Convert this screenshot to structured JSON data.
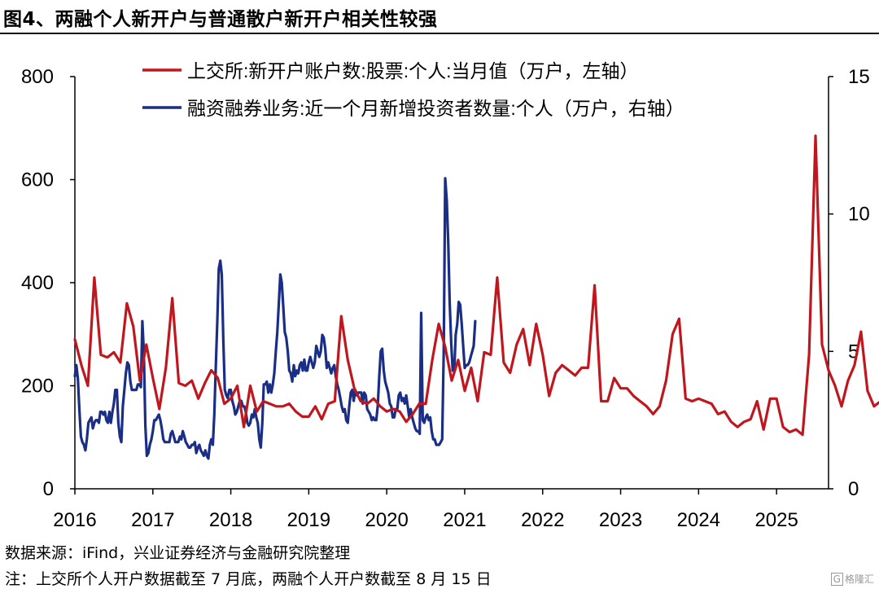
{
  "figure_title": "图4、两融个人新开户与普通散户新开户相关性较强",
  "source_text": "数据来源：iFind，兴业证券经济与金融研究院整理",
  "note_text": "注：上交所个人开户数据截至 7 月底，两融个人开户数截至 8 月 15 日",
  "watermark_text": "格隆汇",
  "colors": {
    "red": "#c0171e",
    "blue": "#1a2e86"
  },
  "chart_data": {
    "type": "line",
    "x_start": "2016-01",
    "x_end": "2025-08",
    "xticks": [
      "2016",
      "2017",
      "2018",
      "2019",
      "2020",
      "2021",
      "2022",
      "2023",
      "2024",
      "2025"
    ],
    "y_left": {
      "range": [
        0,
        800
      ],
      "ticks": [
        "0",
        "200",
        "400",
        "600",
        "800"
      ]
    },
    "y_right": {
      "range": [
        0,
        15
      ],
      "ticks": [
        "0",
        "5",
        "10",
        "15"
      ]
    },
    "legend_position": "top",
    "series": [
      {
        "name": "上交所:新开户账户数:股票:个人:当月值（万户，左轴）",
        "axis": "left",
        "color": "red",
        "frequency": "monthly",
        "start": "2016-01",
        "values": [
          290,
          240,
          200,
          410,
          260,
          255,
          265,
          245,
          360,
          315,
          210,
          280,
          215,
          155,
          235,
          370,
          205,
          200,
          210,
          175,
          205,
          230,
          215,
          165,
          175,
          200,
          120,
          200,
          150,
          170,
          165,
          160,
          160,
          165,
          150,
          140,
          140,
          160,
          135,
          165,
          170,
          335,
          250,
          195,
          170,
          165,
          175,
          160,
          150,
          155,
          150,
          130,
          145,
          165,
          165,
          250,
          320,
          275,
          210,
          250,
          190,
          235,
          170,
          265,
          260,
          410,
          245,
          225,
          280,
          310,
          240,
          320,
          260,
          180,
          225,
          240,
          230,
          220,
          235,
          235,
          395,
          170,
          170,
          215,
          195,
          195,
          180,
          170,
          160,
          145,
          160,
          210,
          300,
          330,
          175,
          170,
          175,
          170,
          165,
          145,
          150,
          130,
          120,
          130,
          135,
          170,
          115,
          175,
          175,
          120,
          110,
          115,
          105,
          260,
          685,
          280,
          230,
          200,
          160,
          210,
          240,
          305,
          190,
          160,
          170,
          200
        ]
      },
      {
        "name": "融资融券业务:近一个月新增投资者数量:个人（万户，右轴）",
        "axis": "right",
        "color": "blue",
        "frequency": "weekly",
        "start": "2016-01",
        "values": [
          4.1,
          4.5,
          4.0,
          2.9,
          1.9,
          1.7,
          1.6,
          1.4,
          1.8,
          2.4,
          2.5,
          2.6,
          2.2,
          2.4,
          2.5,
          2.5,
          2.4,
          2.8,
          2.8,
          2.7,
          2.8,
          2.5,
          2.4,
          2.8,
          2.4,
          2.8,
          3.1,
          3.6,
          3.6,
          2.4,
          1.9,
          1.7,
          3.0,
          3.6,
          4.2,
          4.6,
          4.5,
          3.9,
          3.6,
          3.6,
          3.6,
          3.6,
          3.8,
          3.8,
          3.7,
          6.1,
          5.0,
          2.3,
          1.2,
          1.3,
          1.6,
          1.8,
          2.1,
          2.5,
          2.5,
          2.6,
          2.7,
          2.5,
          2.2,
          1.8,
          1.7,
          1.7,
          1.7,
          1.7,
          2.0,
          2.1,
          1.9,
          1.7,
          1.7,
          1.7,
          1.9,
          1.8,
          2.1,
          1.9,
          1.7,
          1.6,
          1.5,
          1.5,
          1.6,
          1.6,
          1.7,
          1.3,
          1.5,
          1.6,
          1.4,
          1.3,
          1.2,
          1.4,
          1.2,
          1.1,
          1.6,
          1.8,
          1.6,
          2.7,
          4.5,
          6.1,
          8.0,
          8.3,
          7.8,
          5.4,
          3.6,
          3.4,
          3.3,
          3.6,
          3.6,
          3.2,
          3.0,
          2.7,
          2.8,
          3.0,
          3.2,
          3.2,
          3.0,
          3.0,
          2.8,
          2.4,
          2.3,
          2.4,
          2.7,
          2.6,
          2.9,
          2.6,
          2.4,
          1.8,
          1.5,
          2.4,
          3.8,
          3.8,
          3.9,
          3.5,
          3.8,
          3.5,
          3.8,
          4.2,
          5.0,
          5.7,
          6.7,
          7.8,
          7.5,
          6.6,
          5.7,
          5.5,
          5.0,
          4.3,
          4.2,
          3.9,
          4.5,
          4.1,
          4.3,
          4.2,
          4.5,
          4.6,
          4.3,
          4.7,
          4.3,
          4.3,
          4.6,
          4.8,
          4.6,
          4.4,
          4.6,
          5.2,
          5.0,
          4.8,
          5.0,
          5.6,
          5.5,
          5.1,
          4.4,
          4.6,
          4.4,
          4.2,
          4.4,
          4.5,
          4.1,
          3.8,
          3.6,
          3.3,
          3.0,
          2.8,
          2.9,
          2.5,
          2.4,
          3.0,
          3.5,
          3.6,
          3.2,
          3.6,
          3.4,
          3.5,
          3.5,
          3.5,
          3.1,
          3.5,
          3.4,
          2.9,
          2.8,
          2.7,
          2.5,
          2.6,
          2.5,
          2.5,
          3.0,
          4.1,
          5.0,
          5.1,
          4.3,
          3.9,
          3.7,
          3.5,
          3.1,
          3.0,
          2.6,
          2.6,
          2.9,
          2.9,
          3.4,
          3.5,
          3.2,
          3.3,
          3.1,
          3.4,
          3.0,
          2.6,
          2.9,
          2.6,
          2.4,
          2.2,
          2.1,
          2.1,
          2.0,
          6.4,
          2.5,
          2.4,
          2.6,
          2.7,
          2.5,
          2.6,
          2.1,
          1.8,
          1.8,
          1.6,
          1.6,
          1.6,
          1.7,
          1.8,
          5.0,
          11.3,
          10.5,
          9.0,
          6.8,
          5.3,
          4.3,
          4.3,
          5.6,
          6.0,
          6.8,
          6.7,
          6.0,
          5.2,
          4.4,
          4.5,
          4.5,
          4.6,
          4.8,
          5.0,
          5.2,
          6.1
        ]
      }
    ]
  }
}
